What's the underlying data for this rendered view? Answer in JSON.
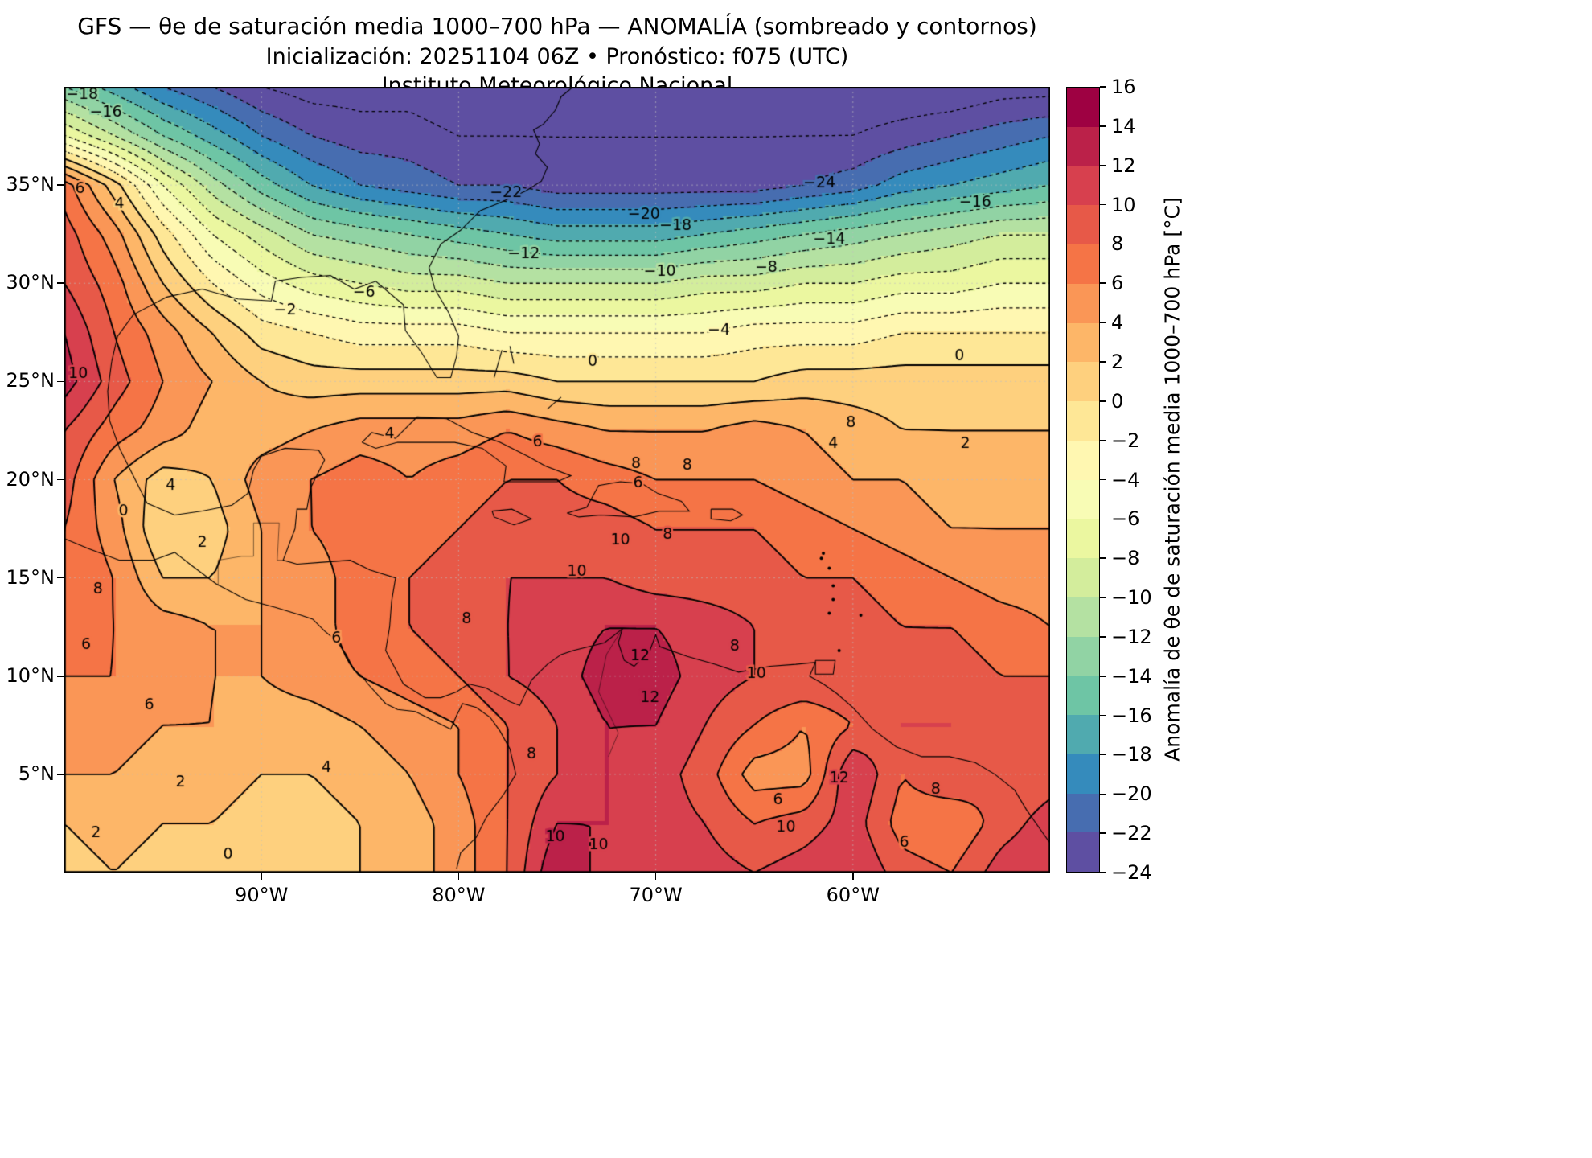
{
  "header": {
    "title_line1": "GFS — θe de saturación media 1000–700 hPa — ANOMALÍA (sombreado y contornos)",
    "title_line2": "Inicialización: 20251104 06Z    •    Pronóstico: f075 (UTC)",
    "title_line3": "Instituto Meteorológico Nacional"
  },
  "chart_data": {
    "type": "heatmap",
    "subtype": "filled-contour-map",
    "title": "GFS — θe de saturación media 1000–700 hPa — ANOMALÍA (sombreado y contornos)",
    "subtitle": "Inicialización: 20251104 06Z • Pronóstico: f075 (UTC)",
    "institution": "Instituto Meteorológico Nacional",
    "units": "°C",
    "x": {
      "label": "",
      "range": [
        -100,
        -50
      ],
      "tick_lons": [
        -90,
        -80,
        -70,
        -60
      ],
      "tick_labels": [
        "90°W",
        "80°W",
        "70°W",
        "60°W"
      ]
    },
    "y": {
      "label": "",
      "range": [
        0,
        40
      ],
      "tick_lats": [
        35,
        30,
        25,
        20,
        15,
        10,
        5
      ],
      "tick_labels": [
        "35°N",
        "30°N",
        "25°N",
        "20°N",
        "15°N",
        "10°N",
        "5°N"
      ]
    },
    "levels": {
      "min": -24,
      "max": 16,
      "step": 2,
      "negative_style": "dotted",
      "positive_style": "solid"
    },
    "colors": [
      "#5e4fa2",
      "#476db0",
      "#358bbc",
      "#50aaaf",
      "#6ec5a5",
      "#91d3a4",
      "#b4e1a2",
      "#d3ed9c",
      "#ebf7a0",
      "#f8fcb5",
      "#fff7b1",
      "#fee796",
      "#fed07e",
      "#fdb668",
      "#fa9656",
      "#f57446",
      "#e75948",
      "#d7404e",
      "#bb2149",
      "#9e0142"
    ],
    "grid": {
      "lon_start": -100,
      "lon_step": 2.5,
      "lat_start": 40,
      "lat_step": -2.5,
      "values": [
        [
          -14,
          -17,
          -20,
          -22,
          -24,
          -25,
          -25,
          -25,
          -26,
          -26,
          -26,
          -26,
          -26,
          -26,
          -26,
          -26,
          -26,
          -26,
          -26,
          -25,
          -25
        ],
        [
          -6,
          -10,
          -14,
          -17,
          -20,
          -22,
          -23,
          -23,
          -24,
          -24,
          -24,
          -24,
          -24,
          -24,
          -24,
          -24,
          -24,
          -23,
          -22,
          -21,
          -20
        ],
        [
          7,
          1,
          -6,
          -11,
          -15,
          -18,
          -20,
          -21,
          -22,
          -22,
          -23,
          -23,
          -23,
          -23,
          -23,
          -22,
          -21,
          -19,
          -18,
          -17,
          -16
        ],
        [
          9,
          5,
          -1,
          -6,
          -9,
          -12,
          -13,
          -14,
          -15,
          -16,
          -17,
          -17,
          -17,
          -16,
          -15,
          -14,
          -13,
          -12,
          -11,
          -10,
          -10
        ],
        [
          10,
          7,
          2,
          -2,
          -5,
          -7,
          -8,
          -9,
          -9,
          -10,
          -10,
          -10,
          -10,
          -9,
          -9,
          -8,
          -8,
          -7,
          -7,
          -6,
          -6
        ],
        [
          12,
          8,
          5,
          2,
          -1,
          -2,
          -3,
          -3,
          -3,
          -4,
          -4,
          -4,
          -4,
          -4,
          -3,
          -3,
          -3,
          -2,
          -2,
          -2,
          -2
        ],
        [
          13,
          9,
          6,
          4,
          2,
          1,
          1,
          1,
          1,
          1,
          0,
          0,
          0,
          0,
          0,
          1,
          1,
          1,
          1,
          1,
          1
        ],
        [
          10,
          7,
          5,
          3,
          3,
          4,
          5,
          5,
          5,
          6,
          5,
          4,
          4,
          4,
          5,
          4,
          3,
          2,
          2,
          2,
          2
        ],
        [
          9,
          4,
          1,
          2,
          5,
          6,
          7,
          6,
          7,
          8,
          8,
          7,
          6,
          6,
          6,
          5,
          4,
          4,
          3,
          3,
          3
        ],
        [
          8,
          5,
          0,
          1,
          4,
          6,
          7,
          7,
          8,
          9,
          9,
          9,
          8,
          8,
          8,
          7,
          6,
          5,
          4,
          4,
          4
        ],
        [
          8,
          6,
          2,
          2,
          4,
          5,
          7,
          8,
          9,
          10,
          10,
          10,
          9,
          9,
          9,
          8,
          8,
          7,
          6,
          5,
          5
        ],
        [
          7,
          6,
          5,
          4,
          4,
          5,
          7,
          8,
          9,
          10,
          11,
          12,
          12,
          11,
          10,
          9,
          9,
          8,
          8,
          7,
          6
        ],
        [
          6,
          6,
          5,
          4,
          4,
          5,
          6,
          7,
          8,
          10,
          11,
          13,
          13,
          11,
          10,
          10,
          10,
          9,
          9,
          8,
          8
        ],
        [
          5,
          5,
          4,
          4,
          3,
          3,
          4,
          5,
          6,
          8,
          10,
          12,
          12,
          10,
          8,
          6,
          8,
          10,
          10,
          9,
          9
        ],
        [
          4,
          4,
          3,
          3,
          2,
          2,
          3,
          4,
          6,
          8,
          10,
          12,
          11,
          9,
          5,
          5,
          12,
          8,
          10,
          8,
          9
        ],
        [
          2,
          3,
          2,
          2,
          1,
          1,
          2,
          3,
          5,
          8,
          12,
          12,
          11,
          10,
          8,
          9,
          11,
          7,
          6,
          9,
          11
        ],
        [
          1,
          2,
          1,
          1,
          0,
          1,
          2,
          3,
          5,
          8,
          14,
          11,
          12,
          11,
          10,
          11,
          12,
          9,
          8,
          11,
          12
        ]
      ]
    },
    "contour_labels": [
      {
        "v": -18,
        "lon": -99.1,
        "lat": 39.6
      },
      {
        "v": -16,
        "lon": -97.9,
        "lat": 38.7
      },
      {
        "v": -22,
        "lon": -77.6,
        "lat": 34.6
      },
      {
        "v": -24,
        "lon": -61.7,
        "lat": 35.1
      },
      {
        "v": -20,
        "lon": -70.6,
        "lat": 33.5
      },
      {
        "v": -18,
        "lon": -69.0,
        "lat": 32.9
      },
      {
        "v": -16,
        "lon": -53.8,
        "lat": 34.1
      },
      {
        "v": -14,
        "lon": -61.2,
        "lat": 32.2
      },
      {
        "v": -12,
        "lon": -76.7,
        "lat": 31.5
      },
      {
        "v": -10,
        "lon": -69.8,
        "lat": 30.6
      },
      {
        "v": -8,
        "lon": -64.4,
        "lat": 30.8
      },
      {
        "v": -6,
        "lon": -84.8,
        "lat": 29.5
      },
      {
        "v": -4,
        "lon": -66.8,
        "lat": 27.6
      },
      {
        "v": -2,
        "lon": -88.8,
        "lat": 28.6
      },
      {
        "v": 0,
        "lon": -73.2,
        "lat": 26.0
      },
      {
        "v": 0,
        "lon": -54.6,
        "lat": 26.3
      },
      {
        "v": 6,
        "lon": -99.2,
        "lat": 34.8
      },
      {
        "v": 4,
        "lon": -97.2,
        "lat": 34.0
      },
      {
        "v": 10,
        "lon": -99.3,
        "lat": 25.4
      },
      {
        "v": 0,
        "lon": -97.0,
        "lat": 18.4
      },
      {
        "v": 2,
        "lon": -93.0,
        "lat": 16.8
      },
      {
        "v": 4,
        "lon": -94.6,
        "lat": 19.7
      },
      {
        "v": 6,
        "lon": -95.7,
        "lat": 8.5
      },
      {
        "v": 2,
        "lon": -94.1,
        "lat": 4.6
      },
      {
        "v": 2,
        "lon": -98.4,
        "lat": 2.0
      },
      {
        "v": 0,
        "lon": -91.7,
        "lat": 0.9
      },
      {
        "v": 4,
        "lon": -86.7,
        "lat": 5.3
      },
      {
        "v": 4,
        "lon": -83.5,
        "lat": 22.3
      },
      {
        "v": 6,
        "lon": -76.0,
        "lat": 21.9
      },
      {
        "v": 8,
        "lon": -71.0,
        "lat": 20.8
      },
      {
        "v": 8,
        "lon": -68.4,
        "lat": 20.7
      },
      {
        "v": 6,
        "lon": -70.9,
        "lat": 19.8
      },
      {
        "v": 8,
        "lon": -60.1,
        "lat": 22.9
      },
      {
        "v": 4,
        "lon": -61.0,
        "lat": 21.8
      },
      {
        "v": 2,
        "lon": -54.3,
        "lat": 21.8
      },
      {
        "v": 10,
        "lon": -71.8,
        "lat": 16.9
      },
      {
        "v": 10,
        "lon": -74.0,
        "lat": 15.3
      },
      {
        "v": 8,
        "lon": -69.4,
        "lat": 17.2
      },
      {
        "v": 8,
        "lon": -79.6,
        "lat": 12.9
      },
      {
        "v": 6,
        "lon": -86.2,
        "lat": 11.9
      },
      {
        "v": 8,
        "lon": -98.3,
        "lat": 14.4
      },
      {
        "v": 6,
        "lon": -98.9,
        "lat": 11.6
      },
      {
        "v": 12,
        "lon": -70.8,
        "lat": 11.0
      },
      {
        "v": 12,
        "lon": -70.3,
        "lat": 8.9
      },
      {
        "v": 8,
        "lon": -66.0,
        "lat": 11.5
      },
      {
        "v": 10,
        "lon": -64.9,
        "lat": 10.1
      },
      {
        "v": 12,
        "lon": -60.7,
        "lat": 4.8
      },
      {
        "v": 8,
        "lon": -55.8,
        "lat": 4.2
      },
      {
        "v": 6,
        "lon": -63.8,
        "lat": 3.7
      },
      {
        "v": 10,
        "lon": -63.4,
        "lat": 2.3
      },
      {
        "v": 6,
        "lon": -57.4,
        "lat": 1.5
      },
      {
        "v": 10,
        "lon": -75.1,
        "lat": 1.8
      },
      {
        "v": 10,
        "lon": -72.9,
        "lat": 1.4
      },
      {
        "v": 8,
        "lon": -76.3,
        "lat": 6.0
      }
    ],
    "colorbar": {
      "label": "Anomalía de θe de saturación media 1000–700 hPa [°C]",
      "ticks": [
        16,
        14,
        12,
        10,
        8,
        6,
        4,
        2,
        0,
        -2,
        -4,
        -6,
        -8,
        -10,
        -12,
        -14,
        -16,
        -18,
        -20,
        -22,
        -24
      ],
      "min": -24,
      "max": 16
    },
    "grid_lines": {
      "on": true,
      "style": "dotted"
    }
  }
}
